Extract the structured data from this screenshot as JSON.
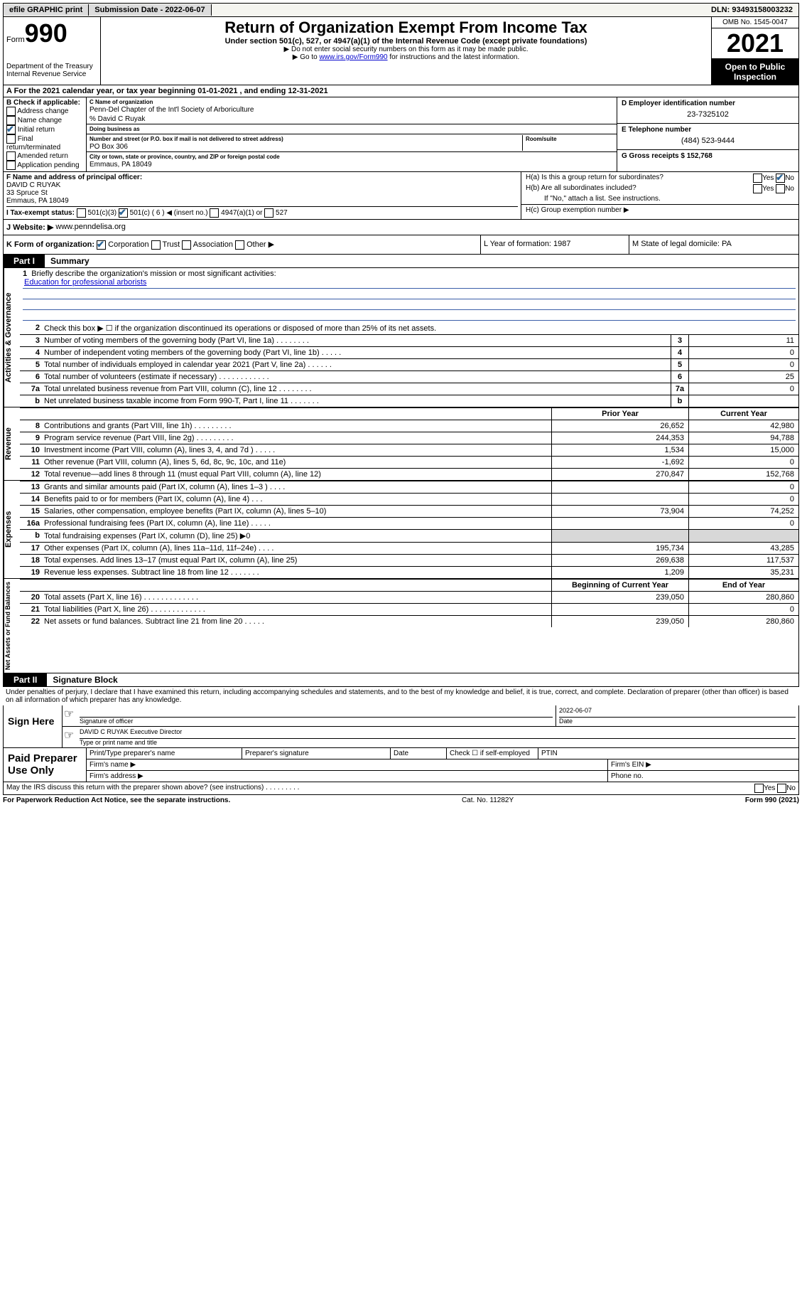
{
  "topbar": {
    "efile": "efile GRAPHIC print",
    "sub_label": "Submission Date - 2022-06-07",
    "dln": "DLN: 93493158003232"
  },
  "header": {
    "form_prefix": "Form",
    "form_no": "990",
    "dept": "Department of the Treasury\nInternal Revenue Service",
    "title": "Return of Organization Exempt From Income Tax",
    "sub": "Under section 501(c), 527, or 4947(a)(1) of the Internal Revenue Code (except private foundations)",
    "note1": "▶ Do not enter social security numbers on this form as it may be made public.",
    "note2_pre": "▶ Go to ",
    "note2_link": "www.irs.gov/Form990",
    "note2_post": " for instructions and the latest information.",
    "omb": "OMB No. 1545-0047",
    "year": "2021",
    "inspect": "Open to Public Inspection"
  },
  "row_a": "A For the 2021 calendar year, or tax year beginning 01-01-2021   , and ending 12-31-2021",
  "section_b": {
    "label": "B Check if applicable:",
    "items": [
      "Address change",
      "Name change",
      "Initial return",
      "Final return/terminated",
      "Amended return",
      "Application pending"
    ],
    "checked_idx": 2
  },
  "section_c": {
    "name_lbl": "C Name of organization",
    "name": "Penn-Del Chapter of the Int'l Society of Arboriculture",
    "care_of": "% David C Ruyak",
    "dba_lbl": "Doing business as",
    "addr_lbl": "Number and street (or P.O. box if mail is not delivered to street address)",
    "room_lbl": "Room/suite",
    "addr": "PO Box 306",
    "city_lbl": "City or town, state or province, country, and ZIP or foreign postal code",
    "city": "Emmaus, PA  18049"
  },
  "section_d": {
    "ein_lbl": "D Employer identification number",
    "ein": "23-7325102",
    "phone_lbl": "E Telephone number",
    "phone": "(484) 523-9444",
    "gross_lbl": "G Gross receipts $",
    "gross": "152,768"
  },
  "section_f": {
    "lbl": "F Name and address of principal officer:",
    "name": "DAVID C RUYAK",
    "addr1": "33 Spruce St",
    "addr2": "Emmaus, PA  18049"
  },
  "section_h": {
    "ha": "H(a)  Is this a group return for subordinates?",
    "hb": "H(b)  Are all subordinates included?",
    "hb_note": "If \"No,\" attach a list. See instructions.",
    "hc": "H(c)  Group exemption number ▶"
  },
  "section_i": {
    "lbl": "I   Tax-exempt status:",
    "opts": [
      "501(c)(3)",
      "501(c) ( 6 ) ◀ (insert no.)",
      "4947(a)(1) or",
      "527"
    ]
  },
  "section_j": {
    "lbl": "J   Website: ▶",
    "val": "www.penndelisa.org"
  },
  "section_k": {
    "lbl": "K Form of organization:",
    "opts": [
      "Corporation",
      "Trust",
      "Association",
      "Other ▶"
    ],
    "l": "L Year of formation: 1987",
    "m": "M State of legal domicile: PA"
  },
  "part1": {
    "tab": "Part I",
    "title": "Summary"
  },
  "activities": {
    "label": "Activities & Governance",
    "q1": "Briefly describe the organization's mission or most significant activities:",
    "mission": "Education for professional arborists",
    "q2": "Check this box ▶ ☐  if the organization discontinued its operations or disposed of more than 25% of its net assets.",
    "lines": [
      {
        "n": "3",
        "d": "Number of voting members of the governing body (Part VI, line 1a)   .    .    .    .    .    .    .    .",
        "v": "11"
      },
      {
        "n": "4",
        "d": "Number of independent voting members of the governing body (Part VI, line 1b)   .    .    .    .    .",
        "v": "0"
      },
      {
        "n": "5",
        "d": "Total number of individuals employed in calendar year 2021 (Part V, line 2a)   .    .    .    .    .    .",
        "v": "0"
      },
      {
        "n": "6",
        "d": "Total number of volunteers (estimate if necessary)   .    .    .    .    .    .    .    .    .    .    .    .",
        "v": "25"
      },
      {
        "n": "7a",
        "d": "Total unrelated business revenue from Part VIII, column (C), line 12   .    .    .    .    .    .    .    .",
        "v": "0"
      },
      {
        "n": "b",
        "d": "Net unrelated business taxable income from Form 990-T, Part I, line 11   .    .    .    .    .    .    .",
        "v": ""
      }
    ]
  },
  "revenue": {
    "label": "Revenue",
    "hdr": {
      "py": "Prior Year",
      "cy": "Current Year"
    },
    "lines": [
      {
        "n": "8",
        "d": "Contributions and grants (Part VIII, line 1h)   .    .    .    .    .    .    .    .    .",
        "py": "26,652",
        "cy": "42,980"
      },
      {
        "n": "9",
        "d": "Program service revenue (Part VIII, line 2g)   .    .    .    .    .    .    .    .    .",
        "py": "244,353",
        "cy": "94,788"
      },
      {
        "n": "10",
        "d": "Investment income (Part VIII, column (A), lines 3, 4, and 7d )   .    .    .    .    .",
        "py": "1,534",
        "cy": "15,000"
      },
      {
        "n": "11",
        "d": "Other revenue (Part VIII, column (A), lines 5, 6d, 8c, 9c, 10c, and 11e)",
        "py": "-1,692",
        "cy": "0"
      },
      {
        "n": "12",
        "d": "Total revenue—add lines 8 through 11 (must equal Part VIII, column (A), line 12)",
        "py": "270,847",
        "cy": "152,768"
      }
    ]
  },
  "expenses": {
    "label": "Expenses",
    "lines": [
      {
        "n": "13",
        "d": "Grants and similar amounts paid (Part IX, column (A), lines 1–3 )   .    .    .    .",
        "py": "",
        "cy": "0"
      },
      {
        "n": "14",
        "d": "Benefits paid to or for members (Part IX, column (A), line 4)   .    .    .",
        "py": "",
        "cy": "0"
      },
      {
        "n": "15",
        "d": "Salaries, other compensation, employee benefits (Part IX, column (A), lines 5–10)",
        "py": "73,904",
        "cy": "74,252"
      },
      {
        "n": "16a",
        "d": "Professional fundraising fees (Part IX, column (A), line 11e)   .    .    .    .    .",
        "py": "",
        "cy": "0"
      },
      {
        "n": "b",
        "d": "Total fundraising expenses (Part IX, column (D), line 25) ▶0",
        "py": "SHADE",
        "cy": "SHADE"
      },
      {
        "n": "17",
        "d": "Other expenses (Part IX, column (A), lines 11a–11d, 11f–24e)   .    .    .    .",
        "py": "195,734",
        "cy": "43,285"
      },
      {
        "n": "18",
        "d": "Total expenses. Add lines 13–17 (must equal Part IX, column (A), line 25)",
        "py": "269,638",
        "cy": "117,537"
      },
      {
        "n": "19",
        "d": "Revenue less expenses. Subtract line 18 from line 12   .    .    .    .    .    .    .",
        "py": "1,209",
        "cy": "35,231"
      }
    ]
  },
  "netassets": {
    "label": "Net Assets or Fund Balances",
    "hdr": {
      "b": "Beginning of Current Year",
      "e": "End of Year"
    },
    "lines": [
      {
        "n": "20",
        "d": "Total assets (Part X, line 16)   .    .    .    .    .    .    .    .    .    .    .    .    .",
        "py": "239,050",
        "cy": "280,860"
      },
      {
        "n": "21",
        "d": "Total liabilities (Part X, line 26)   .    .    .    .    .    .    .    .    .    .    .    .    .",
        "py": "",
        "cy": "0"
      },
      {
        "n": "22",
        "d": "Net assets or fund balances. Subtract line 21 from line 20   .    .    .    .    .",
        "py": "239,050",
        "cy": "280,860"
      }
    ]
  },
  "part2": {
    "tab": "Part II",
    "title": "Signature Block",
    "decl": "Under penalties of perjury, I declare that I have examined this return, including accompanying schedules and statements, and to the best of my knowledge and belief, it is true, correct, and complete. Declaration of preparer (other than officer) is based on all information of which preparer has any knowledge."
  },
  "sign": {
    "lbl": "Sign Here",
    "sig_lbl": "Signature of officer",
    "date_lbl": "Date",
    "date": "2022-06-07",
    "name": "DAVID C RUYAK  Executive Director",
    "name_lbl": "Type or print name and title"
  },
  "prep": {
    "lbl": "Paid Preparer Use Only",
    "h": [
      "Print/Type preparer's name",
      "Preparer's signature",
      "Date"
    ],
    "check_lbl": "Check ☐ if self-employed",
    "ptin": "PTIN",
    "firm_name": "Firm's name    ▶",
    "firm_ein": "Firm's EIN ▶",
    "firm_addr": "Firm's address ▶",
    "phone": "Phone no."
  },
  "may": "May the IRS discuss this return with the preparer shown above? (see instructions)   .    .    .    .    .    .    .    .    .",
  "footer": {
    "l": "For Paperwork Reduction Act Notice, see the separate instructions.",
    "c": "Cat. No. 11282Y",
    "r": "Form 990 (2021)"
  }
}
